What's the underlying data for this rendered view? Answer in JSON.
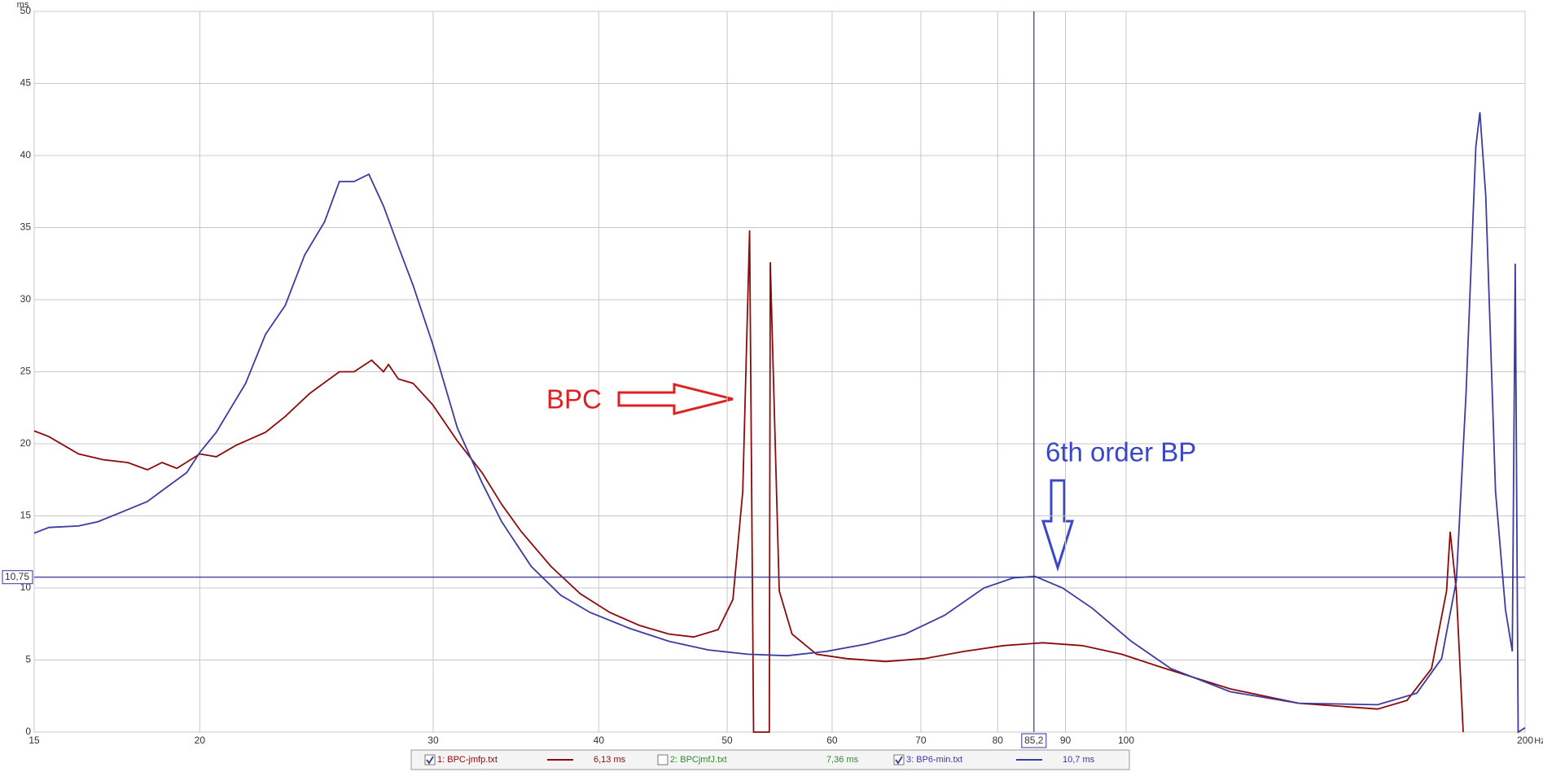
{
  "chart_data": {
    "type": "line",
    "x_label": "Hz",
    "y_label": "ms",
    "xscale": "log",
    "grid": true,
    "xlim": [
      15,
      200
    ],
    "ylim": [
      0,
      50
    ],
    "xticks": [
      15,
      20,
      30,
      40,
      50,
      60,
      70,
      80,
      90,
      100,
      200
    ],
    "yticks": [
      0,
      5,
      10,
      15,
      20,
      25,
      30,
      35,
      40,
      45,
      50
    ],
    "cursor": {
      "x": {
        "value": 85.2,
        "label": "85,2"
      },
      "y": {
        "value": 10.75,
        "label": "10,75"
      },
      "color": "#333399"
    },
    "annotations": [
      {
        "text": "BPC",
        "color": "#dd2222"
      },
      {
        "text": "6th order BP",
        "color": "#3a48c8"
      }
    ],
    "series": [
      {
        "name": "1: BPC-jmfp.txt",
        "color": "#8b0a0a",
        "checked": true,
        "readout": "6,13 ms",
        "x": [
          15,
          15.39,
          16.2,
          16.91,
          17.65,
          18.26,
          18.73,
          19.22,
          20.0,
          20.58,
          21.3,
          22.42,
          23.2,
          24.21,
          25.49,
          26.15,
          26.96,
          27.52,
          27.76,
          28.24,
          28.97,
          29.98,
          31.29,
          32.66,
          33.79,
          34.97,
          36.81,
          38.74,
          40.78,
          42.93,
          45.19,
          47.17,
          49.22,
          50.5,
          51.37,
          51.99,
          52.35,
          52.44,
          53.8,
          53.89,
          54.73,
          55.96,
          58.4,
          61.48,
          65.83,
          70.49,
          75.48,
          80.82,
          86.54,
          92.67,
          99.23,
          106.3,
          119.8,
          135.0,
          154.8,
          162.9,
          170.0,
          174.5,
          175.6,
          177.5,
          179.6
        ],
        "values": [
          20.9,
          20.5,
          19.3,
          18.9,
          18.7,
          18.2,
          18.7,
          18.3,
          19.3,
          19.1,
          19.9,
          20.8,
          21.9,
          23.5,
          25.0,
          25.0,
          25.8,
          25.0,
          25.5,
          24.5,
          24.2,
          22.7,
          20.2,
          18.0,
          15.8,
          13.9,
          11.5,
          9.6,
          8.3,
          7.4,
          6.8,
          6.6,
          7.1,
          9.2,
          16.7,
          34.8,
          0,
          0,
          0,
          32.6,
          9.8,
          6.8,
          5.4,
          5.1,
          4.9,
          5.1,
          5.6,
          6.0,
          6.2,
          6.0,
          5.4,
          4.5,
          3.0,
          2.0,
          1.6,
          2.2,
          4.4,
          9.8,
          13.9,
          9.8,
          0
        ]
      },
      {
        "name": "2: BPCjmfJ.txt",
        "color": "#2e8b2e",
        "checked": false,
        "readout": "7,36 ms"
      },
      {
        "name": "3: BP6-min.txt",
        "color": "#3b3ba0",
        "checked": true,
        "readout": "10,7 ms",
        "x": [
          15,
          15.39,
          16.2,
          16.76,
          17.5,
          18.26,
          18.89,
          19.55,
          20.0,
          20.58,
          21.66,
          22.42,
          23.2,
          24.0,
          24.84,
          25.49,
          26.15,
          26.83,
          27.52,
          28.24,
          28.97,
          29.98,
          31.29,
          32.66,
          33.79,
          35.57,
          37.44,
          39.41,
          42.2,
          45.19,
          48.39,
          51.81,
          55.48,
          59.41,
          63.62,
          68.12,
          72.94,
          78.11,
          82.22,
          85.37,
          89.55,
          94.27,
          100.9,
          108.1,
          119.8,
          135.0,
          154.8,
          165.7,
          173.0,
          177.5,
          180.5,
          183.6,
          184.9,
          186.8,
          190.0,
          193.3,
          195.6,
          196.6,
          197.6,
          200
        ],
        "values": [
          13.8,
          14.2,
          14.3,
          14.6,
          15.3,
          16.0,
          17.0,
          18.0,
          19.4,
          20.8,
          24.2,
          27.6,
          29.6,
          33.1,
          35.4,
          38.2,
          38.2,
          38.7,
          36.5,
          33.7,
          31.0,
          26.9,
          21.1,
          17.3,
          14.6,
          11.5,
          9.5,
          8.3,
          7.2,
          6.3,
          5.7,
          5.4,
          5.3,
          5.6,
          6.1,
          6.8,
          8.1,
          10.0,
          10.7,
          10.8,
          10.0,
          8.6,
          6.3,
          4.4,
          2.8,
          2.0,
          1.9,
          2.7,
          5.1,
          10.5,
          23.5,
          40.6,
          43.0,
          37.2,
          16.7,
          8.5,
          5.6,
          32.5,
          0,
          0.3
        ]
      }
    ]
  }
}
